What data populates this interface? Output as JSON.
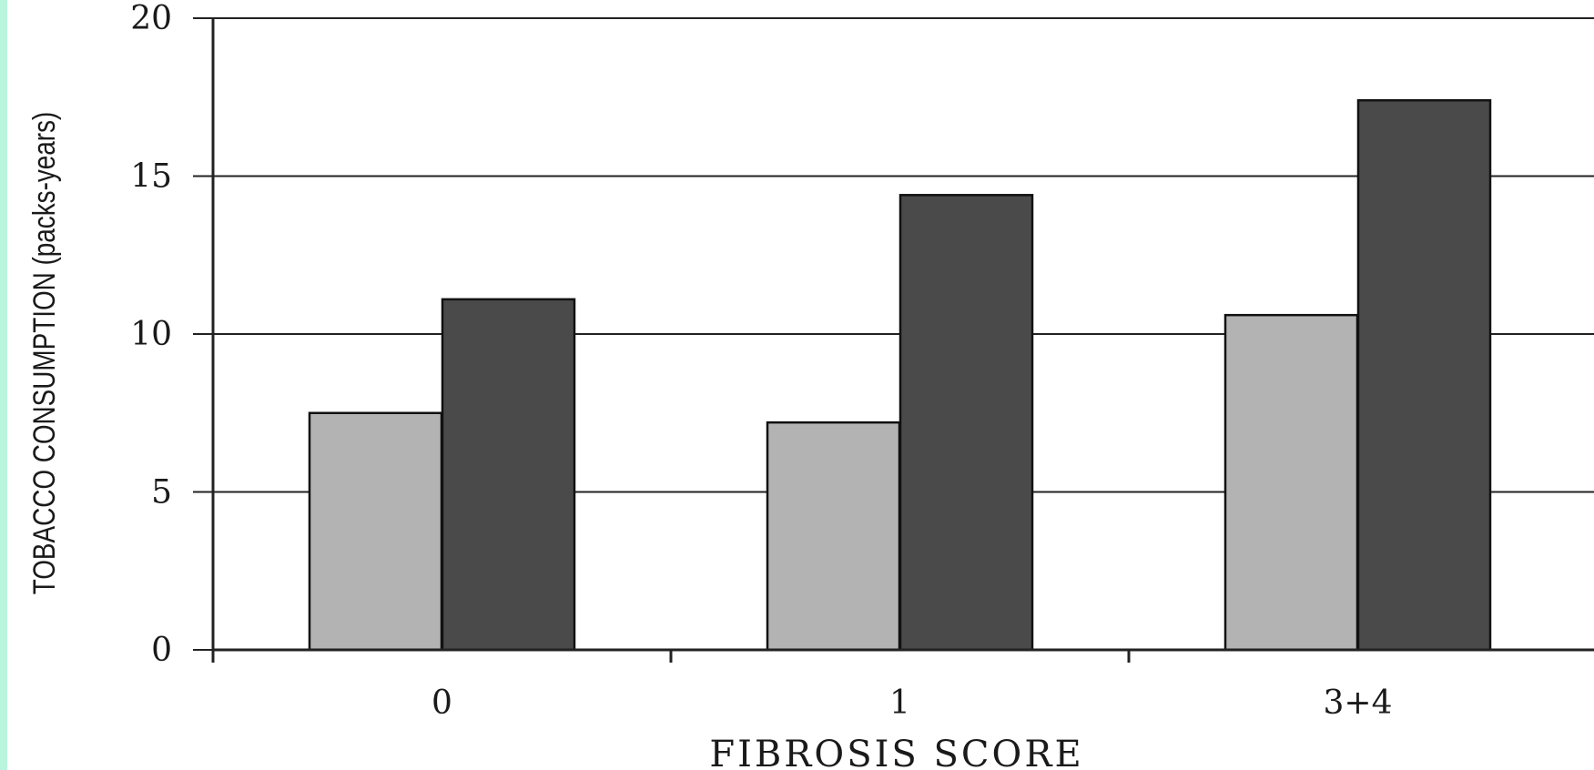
{
  "chart_data": {
    "type": "bar",
    "title": "",
    "xlabel": "FIBROSIS SCORE",
    "ylabel": "TOBACCO CONSUMPTION (packs-years)",
    "categories": [
      "0",
      "1",
      "3+4"
    ],
    "series": [
      {
        "values": [
          7.5,
          7.2,
          10.6
        ],
        "color": "#b3b3b3"
      },
      {
        "values": [
          11.1,
          14.4,
          17.4
        ],
        "color": "#4a4a4a"
      }
    ],
    "ylim": [
      0,
      20
    ],
    "yticks": [
      "0",
      "5",
      "10",
      "15",
      "20"
    ],
    "grid": true,
    "legend": "none"
  }
}
